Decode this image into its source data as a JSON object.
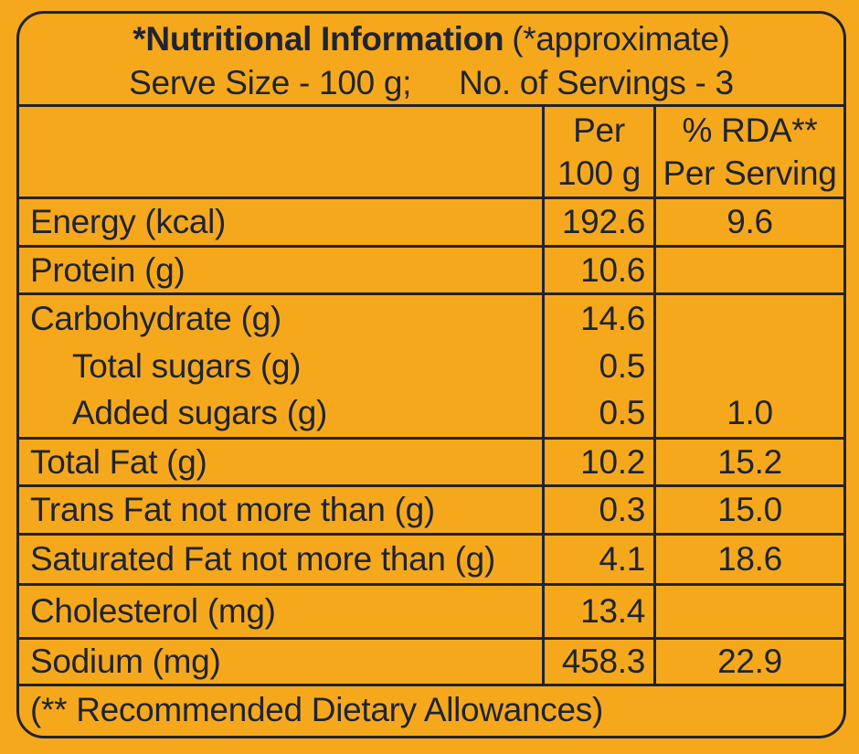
{
  "colors": {
    "background": "#F6A81C",
    "ink": "#1E2433"
  },
  "header": {
    "title": "*Nutritional Information",
    "title_note": "(*approximate)",
    "serve_size": "Serve Size - 100 g;",
    "servings": "No. of Servings - 3"
  },
  "table": {
    "columns": {
      "per_100g": [
        "Per",
        "100 g"
      ],
      "rda": [
        "% RDA**",
        "Per Serving"
      ]
    },
    "rows": [
      {
        "label": "Energy (kcal)",
        "per100": "192.6",
        "rda": "9.6"
      },
      {
        "label": "Protein (g)",
        "per100": "10.6",
        "rda": ""
      },
      {
        "label": "Total Fat (g)",
        "per100": "10.2",
        "rda": "15.2"
      },
      {
        "label": "Trans Fat not more than (g)",
        "per100": "0.3",
        "rda": "15.0"
      },
      {
        "label": "Saturated Fat not more than (g)",
        "per100": "4.1",
        "rda": "18.6"
      },
      {
        "label": "Cholesterol (mg)",
        "per100": "13.4",
        "rda": ""
      },
      {
        "label": "Sodium (mg)",
        "per100": "458.3",
        "rda": "22.9"
      }
    ],
    "carb_group": {
      "lines": [
        {
          "label": "Carbohydrate (g)",
          "per100": "14.6",
          "rda": ""
        },
        {
          "label": "Total sugars (g)",
          "per100": "0.5",
          "rda": ""
        },
        {
          "label": "Added sugars (g)",
          "per100": "0.5",
          "rda": "1.0"
        }
      ]
    },
    "footnote": "(** Recommended Dietary Allowances)"
  }
}
